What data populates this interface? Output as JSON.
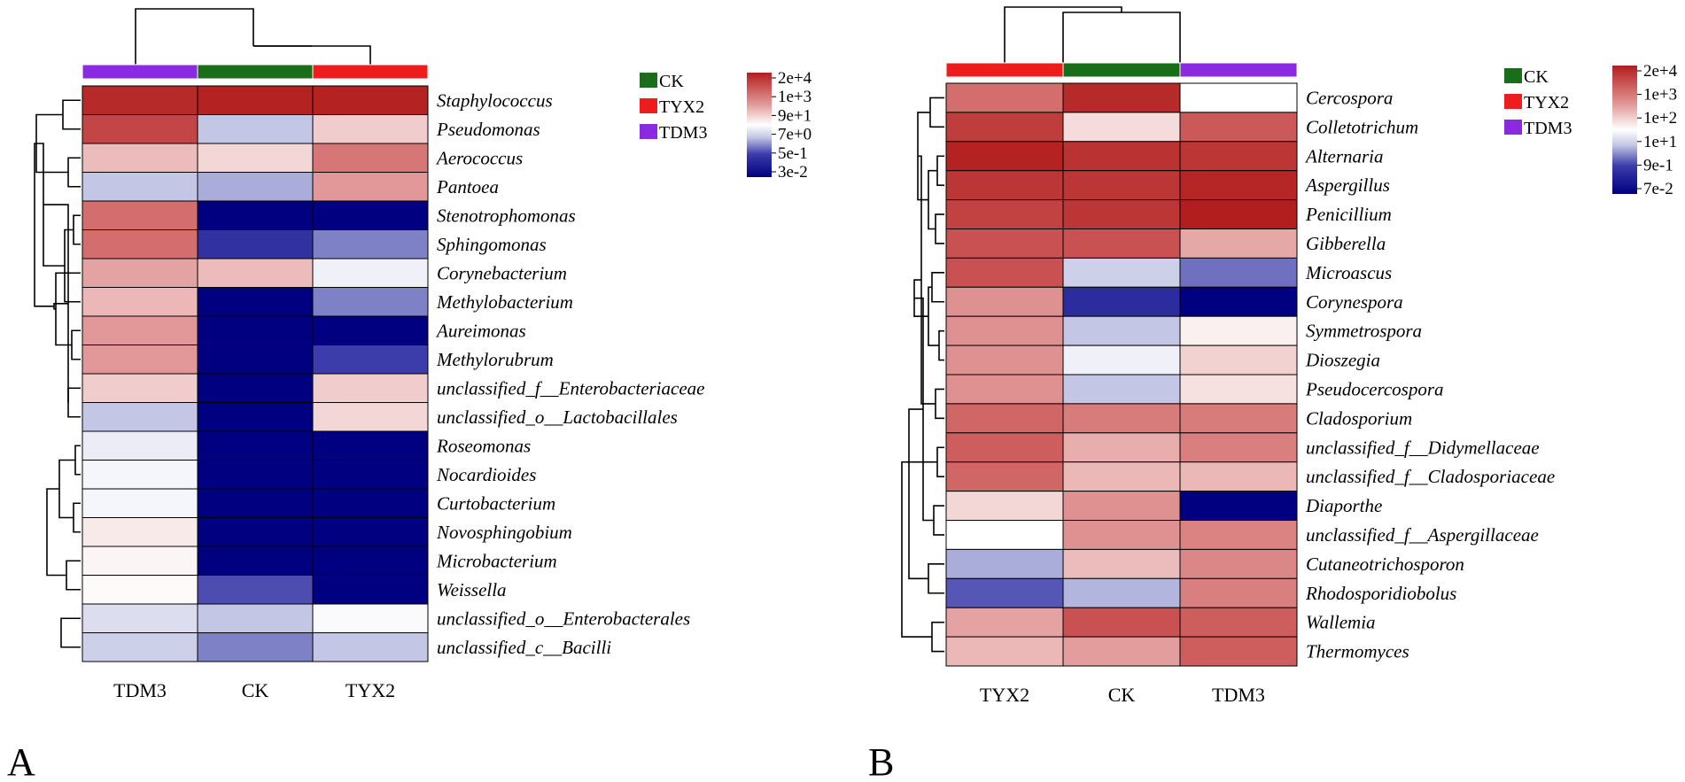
{
  "groups": {
    "CK": "#1a6e1a",
    "TYX2": "#ee1c1c",
    "TDM3": "#8a2be2"
  },
  "chart_data": [
    {
      "type": "heatmap",
      "panel_label": "A",
      "columns": [
        "TDM3",
        "CK",
        "TYX2"
      ],
      "rows": [
        "Staphylococcus",
        "Pseudomonas",
        "Aerococcus",
        "Pantoea",
        "Stenotrophomonas",
        "Sphingomonas",
        "Corynebacterium",
        "Methylobacterium",
        "Aureimonas",
        "Methylorubrum",
        "unclassified_f__Enterobacteriaceae",
        "unclassified_o__Lactobacillales",
        "Roseomonas",
        "Nocardioides",
        "Curtobacterium",
        "Novosphingobium",
        "Microbacterium",
        "Weissella",
        "unclassified_o__Enterobacterales",
        "unclassified_c__Bacilli"
      ],
      "values": [
        [
          0.97,
          0.99,
          0.99
        ],
        [
          0.9,
          0.38,
          0.6
        ],
        [
          0.63,
          0.58,
          0.78
        ],
        [
          0.38,
          0.35,
          0.7
        ],
        [
          0.8,
          0.0,
          0.0
        ],
        [
          0.8,
          0.18,
          0.3
        ],
        [
          0.68,
          0.63,
          0.47
        ],
        [
          0.64,
          0.0,
          0.3
        ],
        [
          0.7,
          0.0,
          0.0
        ],
        [
          0.7,
          0.0,
          0.22
        ],
        [
          0.6,
          0.0,
          0.6
        ],
        [
          0.38,
          0.0,
          0.58
        ],
        [
          0.46,
          0.0,
          0.0
        ],
        [
          0.48,
          0.0,
          0.0
        ],
        [
          0.48,
          0.0,
          0.0
        ],
        [
          0.54,
          0.0,
          0.0
        ],
        [
          0.52,
          0.0,
          0.0
        ],
        [
          0.51,
          0.24,
          0.0
        ],
        [
          0.43,
          0.38,
          0.49
        ],
        [
          0.4,
          0.3,
          0.38
        ]
      ],
      "legend": [
        "CK",
        "TYX2",
        "TDM3"
      ],
      "colorbar_ticks": [
        "2e+4",
        "1e+3",
        "9e+1",
        "7e+0",
        "5e-1",
        "3e-2"
      ]
    },
    {
      "type": "heatmap",
      "panel_label": "B",
      "columns": [
        "TYX2",
        "CK",
        "TDM3"
      ],
      "rows": [
        "Cercospora",
        "Colletotrichum",
        "Alternaria",
        "Aspergillus",
        "Penicillium",
        "Gibberella",
        "Microascus",
        "Corynespora",
        "Symmetrospora",
        "Dioszegia",
        "Pseudocercospora",
        "Cladosporium",
        "unclassified_f__Didymellaceae",
        "unclassified_f__Cladosporiaceae",
        "Diaporthe",
        "unclassified_f__Aspergillaceae",
        "Cutaneotrichosporon",
        "Rhodosporidiobolus",
        "Wallemia",
        "Thermomyces"
      ],
      "values": [
        [
          0.8,
          0.97,
          0.5
        ],
        [
          0.92,
          0.57,
          0.85
        ],
        [
          0.99,
          0.95,
          0.94
        ],
        [
          0.94,
          0.94,
          0.98
        ],
        [
          0.91,
          0.94,
          1.0
        ],
        [
          0.87,
          0.87,
          0.67
        ],
        [
          0.87,
          0.4,
          0.28
        ],
        [
          0.72,
          0.16,
          0.0
        ],
        [
          0.72,
          0.38,
          0.53
        ],
        [
          0.72,
          0.47,
          0.59
        ],
        [
          0.72,
          0.38,
          0.56
        ],
        [
          0.82,
          0.77,
          0.77
        ],
        [
          0.84,
          0.66,
          0.76
        ],
        [
          0.82,
          0.64,
          0.64
        ],
        [
          0.58,
          0.72,
          0.0
        ],
        [
          0.5,
          0.72,
          0.75
        ],
        [
          0.35,
          0.63,
          0.74
        ],
        [
          0.25,
          0.36,
          0.76
        ],
        [
          0.68,
          0.87,
          0.84
        ],
        [
          0.64,
          0.69,
          0.84
        ]
      ],
      "legend": [
        "CK",
        "TYX2",
        "TDM3"
      ],
      "colorbar_ticks": [
        "2e+4",
        "1e+3",
        "1e+2",
        "1e+1",
        "9e-1",
        "7e-2"
      ]
    }
  ]
}
